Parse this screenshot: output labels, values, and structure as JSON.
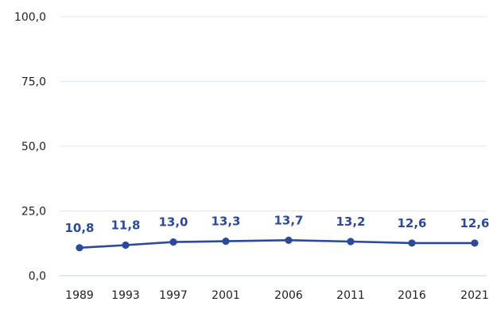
{
  "chart_data": {
    "type": "line",
    "categories": [
      "1989",
      "1993",
      "1997",
      "2001",
      "2006",
      "2011",
      "2016",
      "2021"
    ],
    "values": [
      10.8,
      11.8,
      13.0,
      13.3,
      13.7,
      13.2,
      12.6,
      12.6
    ],
    "value_labels": [
      "10,8",
      "11,8",
      "13,0",
      "13,3",
      "13,7",
      "13,2",
      "12,6",
      "12,6"
    ],
    "y_ticks": [
      0,
      25,
      50,
      75,
      100
    ],
    "y_tick_labels": [
      "0,0",
      "25,0",
      "50,0",
      "75,0",
      "100,0"
    ],
    "ylim": [
      0,
      100
    ],
    "grid": true,
    "color": "#2b4a9a",
    "grid_color": "#dbe9f6"
  }
}
